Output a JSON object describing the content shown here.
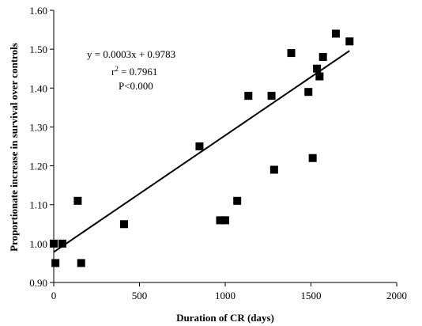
{
  "chart_data": {
    "type": "scatter",
    "xlabel": "Duration of CR (days)",
    "ylabel": "Proportionate increase in survival over controls",
    "xlim": [
      0,
      2000
    ],
    "ylim": [
      0.9,
      1.6
    ],
    "x_ticks": [
      "0",
      "500",
      "1000",
      "1500",
      "2000"
    ],
    "y_ticks": [
      "0.90",
      "1.00",
      "1.10",
      "1.20",
      "1.30",
      "1.40",
      "1.50",
      "1.60"
    ],
    "grid": false,
    "marker": "square",
    "marker_color": "#000000",
    "points": [
      {
        "x": 0,
        "y": 1.0
      },
      {
        "x": 10,
        "y": 0.95
      },
      {
        "x": 50,
        "y": 1.0
      },
      {
        "x": 140,
        "y": 1.11
      },
      {
        "x": 160,
        "y": 0.95
      },
      {
        "x": 410,
        "y": 1.05
      },
      {
        "x": 850,
        "y": 1.25
      },
      {
        "x": 970,
        "y": 1.06
      },
      {
        "x": 1000,
        "y": 1.06
      },
      {
        "x": 1070,
        "y": 1.11
      },
      {
        "x": 1135,
        "y": 1.38
      },
      {
        "x": 1270,
        "y": 1.38
      },
      {
        "x": 1285,
        "y": 1.19
      },
      {
        "x": 1385,
        "y": 1.49
      },
      {
        "x": 1485,
        "y": 1.39
      },
      {
        "x": 1510,
        "y": 1.22
      },
      {
        "x": 1535,
        "y": 1.45
      },
      {
        "x": 1550,
        "y": 1.43
      },
      {
        "x": 1570,
        "y": 1.48
      },
      {
        "x": 1645,
        "y": 1.54
      },
      {
        "x": 1725,
        "y": 1.52
      }
    ],
    "trendline": {
      "type": "linear",
      "slope": 0.0003,
      "intercept": 0.9783,
      "x_range": [
        0,
        1725
      ]
    },
    "annotations": {
      "equation": "y = 0.0003x + 0.9783",
      "r2_base": "r",
      "r2_exp": "2",
      "r2_value": " = 0.7961",
      "p_value": "P<0.000"
    }
  }
}
